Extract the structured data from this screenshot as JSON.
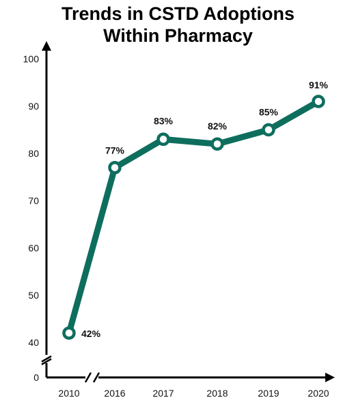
{
  "chart_data": {
    "type": "line",
    "title": "Trends in CSTD Adoptions Within Pharmacy",
    "title_lines": [
      "Trends in CSTD Adoptions",
      "Within Pharmacy"
    ],
    "x": [
      "2010",
      "2016",
      "2017",
      "2018",
      "2019",
      "2020"
    ],
    "series": [
      {
        "values": [
          42,
          77,
          83,
          82,
          85,
          91
        ]
      }
    ],
    "data_labels": [
      "42%",
      "77%",
      "83%",
      "82%",
      "85%",
      "91%"
    ],
    "y_ticks": [
      0,
      40,
      50,
      60,
      70,
      80,
      90,
      100
    ],
    "ylim": [
      40,
      100
    ],
    "axis_breaks": [
      "y-axis between 0 and 40",
      "x-axis between 2010 and 2016"
    ],
    "grid": false,
    "legend": "none",
    "colors": {
      "line": "#0e6e5e",
      "marker_fill": "#ffffff",
      "axis": "#000000"
    }
  }
}
